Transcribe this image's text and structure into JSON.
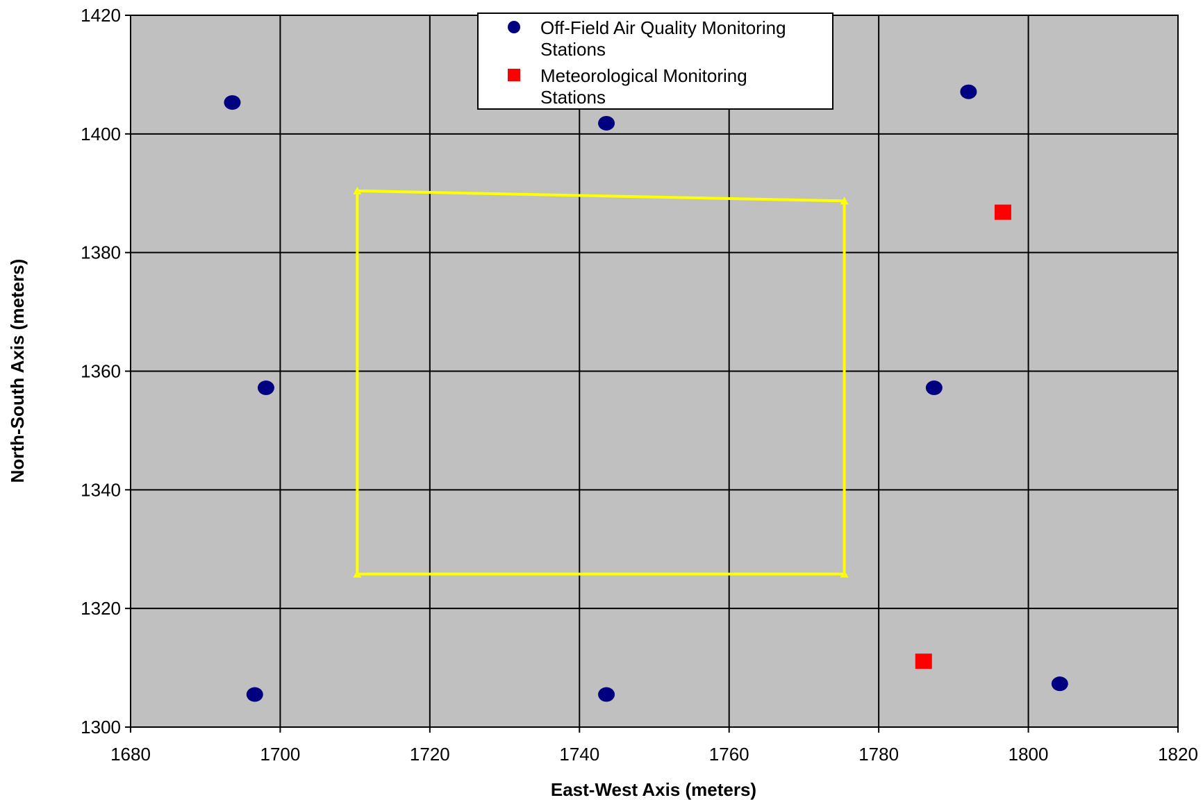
{
  "chart_data": {
    "type": "scatter",
    "title": "",
    "xlabel": "East-West Axis (meters)",
    "ylabel": "North-South Axis (meters)",
    "xlim": [
      1680,
      1820
    ],
    "ylim": [
      1300,
      1420
    ],
    "x_ticks": [
      1680,
      1700,
      1720,
      1740,
      1760,
      1780,
      1800,
      1820
    ],
    "y_ticks": [
      1300,
      1320,
      1340,
      1360,
      1380,
      1400,
      1420
    ],
    "grid": true,
    "legend_position": "top-center",
    "plot_background": "#c0c0c0",
    "series": [
      {
        "name": "Off-Field Air Quality Monitoring Stations",
        "marker": "circle",
        "color": "#000080",
        "points": [
          {
            "x": 1693.6,
            "y": 1405.3
          },
          {
            "x": 1743.6,
            "y": 1401.8
          },
          {
            "x": 1792.0,
            "y": 1407.1
          },
          {
            "x": 1698.1,
            "y": 1357.2
          },
          {
            "x": 1787.4,
            "y": 1357.2
          },
          {
            "x": 1696.6,
            "y": 1305.5
          },
          {
            "x": 1743.6,
            "y": 1305.5
          },
          {
            "x": 1804.2,
            "y": 1307.3
          }
        ]
      },
      {
        "name": "Meteorological Monitoring Stations",
        "marker": "square",
        "color": "#ff0000",
        "points": [
          {
            "x": 1796.6,
            "y": 1386.8
          },
          {
            "x": 1786.0,
            "y": 1311.1
          }
        ]
      }
    ],
    "boundary": {
      "color": "#ffff00",
      "points": [
        {
          "x": 1710.3,
          "y": 1390.4
        },
        {
          "x": 1775.4,
          "y": 1388.7
        },
        {
          "x": 1775.4,
          "y": 1325.8
        },
        {
          "x": 1710.3,
          "y": 1325.8
        }
      ]
    },
    "legend": {
      "entries": [
        {
          "line1": "Off-Field Air Quality Monitoring",
          "line2": "Stations"
        },
        {
          "line1": "Meteorological Monitoring",
          "line2": "Stations"
        }
      ]
    }
  }
}
